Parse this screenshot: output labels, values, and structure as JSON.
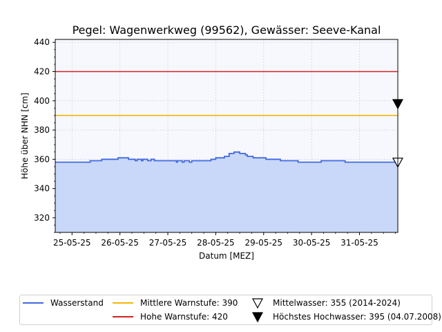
{
  "chart_data": {
    "type": "line",
    "title": "Pegel:  Wagenwerkweg (99562), Gewässer:  Seeve-Kanal",
    "xlabel": "Datum [MEZ]",
    "ylabel": "Höhe über NHN [cm]",
    "ylim": [
      310,
      442
    ],
    "yticks": [
      320,
      340,
      360,
      380,
      400,
      420,
      440
    ],
    "xlim": [
      -0.35,
      6.8
    ],
    "xtick_labels": [
      "25-05-25",
      "26-05-25",
      "27-05-25",
      "28-05-25",
      "29-05-25",
      "30-05-25",
      "31-05-25"
    ],
    "grid": true,
    "legend_position": "bottom",
    "series": [
      {
        "name": "Wasserstand",
        "color": "#4169e1",
        "fill": "#c9d8f8",
        "step": true,
        "x": [
          -0.35,
          0.38,
          0.62,
          0.96,
          1.18,
          1.32,
          1.36,
          1.45,
          1.48,
          1.58,
          1.65,
          1.72,
          1.95,
          2.18,
          2.2,
          2.3,
          2.34,
          2.45,
          2.5,
          2.55,
          2.6,
          2.9,
          3.0,
          3.05,
          3.12,
          3.18,
          3.28,
          3.38,
          3.42,
          3.46,
          3.5,
          3.55,
          3.62,
          3.66,
          3.7,
          3.78,
          4.05,
          4.35,
          4.72,
          5.2,
          5.7,
          6.1,
          6.8
        ],
        "y": [
          358,
          359,
          360,
          361,
          360,
          359,
          360,
          359,
          360,
          359,
          360,
          359,
          359,
          358,
          359,
          358,
          359,
          358,
          359,
          359,
          359,
          360,
          361,
          361,
          361,
          362,
          364,
          365,
          365,
          365,
          364,
          364,
          363,
          362,
          362,
          361,
          360,
          359,
          358,
          359,
          358,
          358,
          358
        ]
      }
    ],
    "reference_lines": [
      {
        "name": "Mittlere Warnstufe: 390",
        "value": 390,
        "color": "#f2b705"
      },
      {
        "name": "Hohe Warnstufe: 420",
        "value": 420,
        "color": "#d42020"
      }
    ],
    "markers": [
      {
        "name": "Mittelwasser: 355 (2014-2024)",
        "value": 358,
        "style": "open-triangle-down"
      },
      {
        "name": "Höchstes Hochwasser: 395 (04.07.2008)",
        "value": 398,
        "style": "filled-triangle-down"
      }
    ]
  },
  "legend": {
    "wasserstand": "Wasserstand",
    "mittlere": "Mittlere Warnstufe: 390",
    "hohe": "Hohe Warnstufe: 420",
    "mittelwasser": "Mittelwasser: 355 (2014-2024)",
    "hochwasser": "Höchstes Hochwasser: 395 (04.07.2008)"
  }
}
